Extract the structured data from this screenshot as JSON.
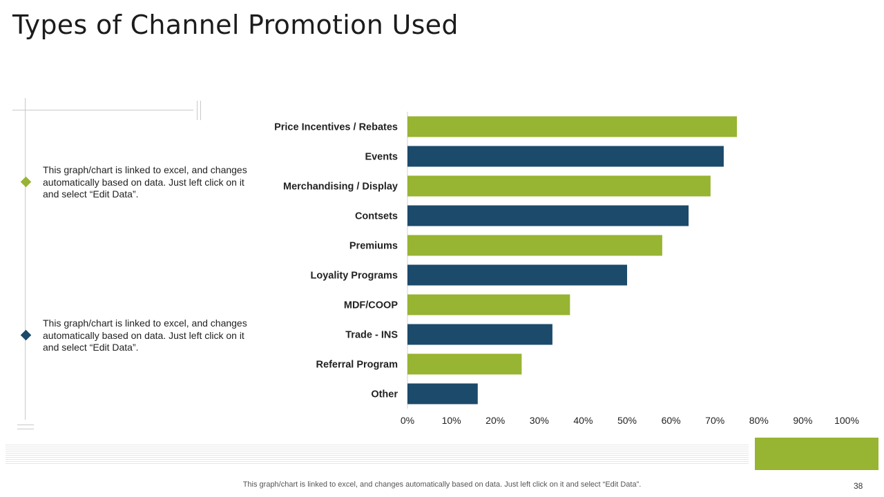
{
  "slide": {
    "title": "Types of Channel Promotion Used",
    "page_number": "38",
    "footer_note": "This graph/chart is linked to excel,  and changes automatically based on data. Just left click on it and select “Edit Data”."
  },
  "notes": [
    {
      "text": "This graph/chart is linked to excel, and changes automatically based on data. Just left click on it and select “Edit Data”.",
      "color": "#97b432"
    },
    {
      "text": "This graph/chart is linked to excel, and changes automatically based on data. Just left click on it and select “Edit Data”.",
      "color": "#1b4a6b"
    }
  ],
  "colors": {
    "green": "#97b432",
    "navy": "#1b4a6b",
    "axis": "#d0d0d0"
  },
  "chart_data": {
    "type": "bar",
    "orientation": "horizontal",
    "title": "",
    "xlabel": "",
    "ylabel": "",
    "categories": [
      "Price Incentives / Rebates",
      "Events",
      "Merchandising / Display",
      "Contsets",
      "Premiums",
      "Loyality Programs",
      "MDF/COOP",
      "Trade - INS",
      "Referral Program",
      "Other"
    ],
    "values": [
      75,
      72,
      69,
      64,
      58,
      50,
      37,
      33,
      26,
      16
    ],
    "bar_colors": [
      "#97b432",
      "#1b4a6b",
      "#97b432",
      "#1b4a6b",
      "#97b432",
      "#1b4a6b",
      "#97b432",
      "#1b4a6b",
      "#97b432",
      "#1b4a6b"
    ],
    "xlim": [
      0,
      100
    ],
    "x_ticks": [
      "0%",
      "10%",
      "20%",
      "30%",
      "40%",
      "50%",
      "60%",
      "70%",
      "80%",
      "90%",
      "100%"
    ],
    "grid": false,
    "legend": "none"
  }
}
